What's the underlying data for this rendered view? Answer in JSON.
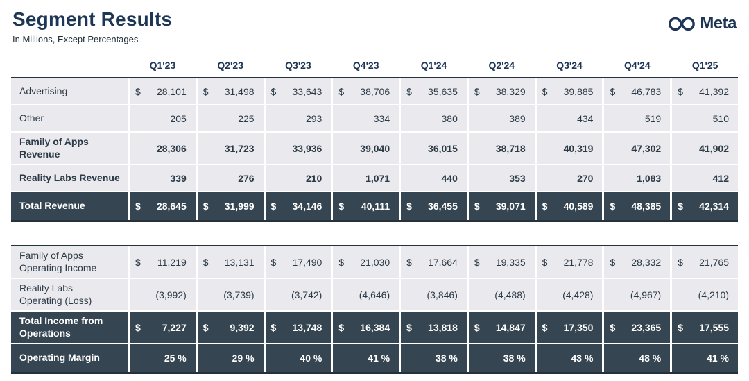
{
  "header": {
    "title": "Segment Results",
    "subtitle": "In Millions, Except Percentages",
    "logo_text": "Meta"
  },
  "colors": {
    "navy": "#1e3656",
    "dark_row": "#354551",
    "light_row": "#e9e9ee",
    "border": "#26323b",
    "text": "#2c3a46"
  },
  "chart_data": {
    "type": "table",
    "title": "Segment Results",
    "subtitle": "In Millions, Except Percentages",
    "columns": [
      "Q1'23",
      "Q2'23",
      "Q3'23",
      "Q4'23",
      "Q1'24",
      "Q2'24",
      "Q3'24",
      "Q4'24",
      "Q1'25"
    ],
    "sections": [
      {
        "name": "revenue",
        "rows": [
          {
            "label": "Advertising",
            "style": "plain",
            "dollar": true,
            "values": [
              "28,101",
              "31,498",
              "33,643",
              "38,706",
              "35,635",
              "38,329",
              "39,885",
              "46,783",
              "41,392"
            ]
          },
          {
            "label": "Other",
            "style": "plain",
            "dollar": false,
            "values": [
              "205",
              "225",
              "293",
              "334",
              "380",
              "389",
              "434",
              "519",
              "510"
            ]
          },
          {
            "label": "Family of Apps\nRevenue",
            "style": "bold",
            "dollar": false,
            "values": [
              "28,306",
              "31,723",
              "33,936",
              "39,040",
              "36,015",
              "38,718",
              "40,319",
              "47,302",
              "41,902"
            ]
          },
          {
            "label": "Reality Labs Revenue",
            "style": "bold",
            "dollar": false,
            "values": [
              "339",
              "276",
              "210",
              "1,071",
              "440",
              "353",
              "270",
              "1,083",
              "412"
            ]
          },
          {
            "label": "Total Revenue",
            "style": "total",
            "dollar": true,
            "values": [
              "28,645",
              "31,999",
              "34,146",
              "40,111",
              "36,455",
              "39,071",
              "40,589",
              "48,385",
              "42,314"
            ]
          }
        ]
      },
      {
        "name": "operating-income",
        "rows": [
          {
            "label": "Family of Apps\nOperating Income",
            "style": "plain",
            "dollar": true,
            "values": [
              "11,219",
              "13,131",
              "17,490",
              "21,030",
              "17,664",
              "19,335",
              "21,778",
              "28,332",
              "21,765"
            ]
          },
          {
            "label": "Reality Labs\nOperating (Loss)",
            "style": "plain",
            "dollar": false,
            "values": [
              "(3,992)",
              "(3,739)",
              "(3,742)",
              "(4,646)",
              "(3,846)",
              "(4,488)",
              "(4,428)",
              "(4,967)",
              "(4,210)"
            ]
          },
          {
            "label": "Total Income from\nOperations",
            "style": "total",
            "dollar": true,
            "values": [
              "7,227",
              "9,392",
              "13,748",
              "16,384",
              "13,818",
              "14,847",
              "17,350",
              "23,365",
              "17,555"
            ]
          },
          {
            "label": "Operating Margin",
            "style": "total",
            "dollar": false,
            "values": [
              "25 %",
              "29 %",
              "40 %",
              "41 %",
              "38 %",
              "38 %",
              "43 %",
              "48 %",
              "41 %"
            ]
          }
        ]
      }
    ]
  }
}
